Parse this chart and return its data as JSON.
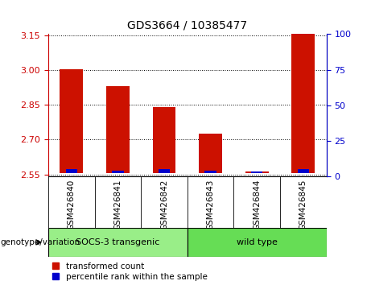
{
  "title": "GDS3664 / 10385477",
  "samples": [
    "GSM426840",
    "GSM426841",
    "GSM426842",
    "GSM426843",
    "GSM426844",
    "GSM426845"
  ],
  "red_values": [
    3.005,
    2.93,
    2.84,
    2.725,
    2.562,
    3.19
  ],
  "blue_percentiles": [
    3,
    2,
    3,
    2,
    1,
    3
  ],
  "ylim_left": [
    2.54,
    3.155
  ],
  "ylim_right": [
    0,
    100
  ],
  "yticks_left": [
    2.55,
    2.7,
    2.85,
    3.0,
    3.15
  ],
  "yticks_right": [
    0,
    25,
    50,
    75,
    100
  ],
  "bar_color_red": "#cc1100",
  "bar_color_blue": "#0000cc",
  "tick_color_left": "#cc0000",
  "tick_color_right": "#0000cc",
  "groups": [
    {
      "label": "SOCS-3 transgenic",
      "indices": [
        0,
        1,
        2
      ],
      "color": "#99ee88"
    },
    {
      "label": "wild type",
      "indices": [
        3,
        4,
        5
      ],
      "color": "#66dd55"
    }
  ],
  "group_label": "genotype/variation",
  "legend_red": "transformed count",
  "legend_blue": "percentile rank within the sample",
  "base_value": 2.555,
  "bar_width": 0.5,
  "blue_bar_width": 0.25
}
